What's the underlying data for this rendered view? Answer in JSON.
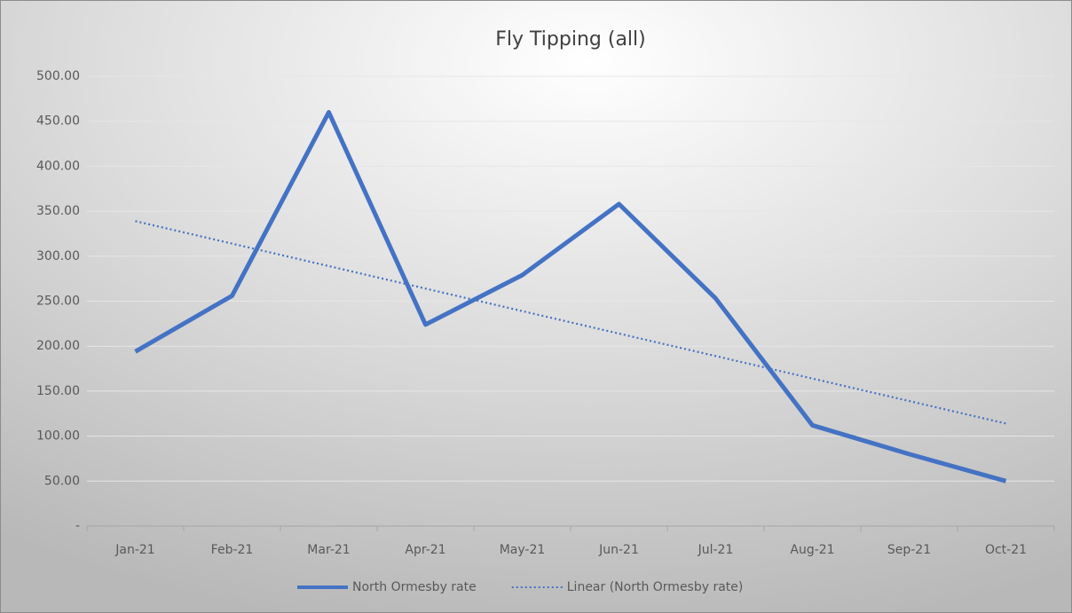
{
  "chart_data": {
    "type": "line",
    "title": "Fly Tipping (all)",
    "categories": [
      "Jan-21",
      "Feb-21",
      "Mar-21",
      "Apr-21",
      "May-21",
      "Jun-21",
      "Jul-21",
      "Aug-21",
      "Sep-21",
      "Oct-21"
    ],
    "series": [
      {
        "name": "North Ormesby rate",
        "color": "#4472c4",
        "style": "solid",
        "values": [
          194,
          256,
          460,
          224,
          279,
          358,
          253,
          112,
          80,
          50
        ]
      },
      {
        "name": "Linear (North Ormesby rate)",
        "color": "#4472c4",
        "style": "dotted",
        "values": [
          339,
          314,
          289,
          264,
          239,
          214,
          189,
          164,
          139,
          114
        ]
      }
    ],
    "ylim": [
      0,
      500
    ],
    "yticks": [
      {
        "value": 0,
        "label": "-"
      },
      {
        "value": 50,
        "label": "50.00"
      },
      {
        "value": 100,
        "label": "100.00"
      },
      {
        "value": 150,
        "label": "150.00"
      },
      {
        "value": 200,
        "label": "200.00"
      },
      {
        "value": 250,
        "label": "250.00"
      },
      {
        "value": 300,
        "label": "300.00"
      },
      {
        "value": 350,
        "label": "350.00"
      },
      {
        "value": 400,
        "label": "400.00"
      },
      {
        "value": 450,
        "label": "450.00"
      },
      {
        "value": 500,
        "label": "500.00"
      }
    ],
    "grid": true,
    "legend": "bottom"
  }
}
